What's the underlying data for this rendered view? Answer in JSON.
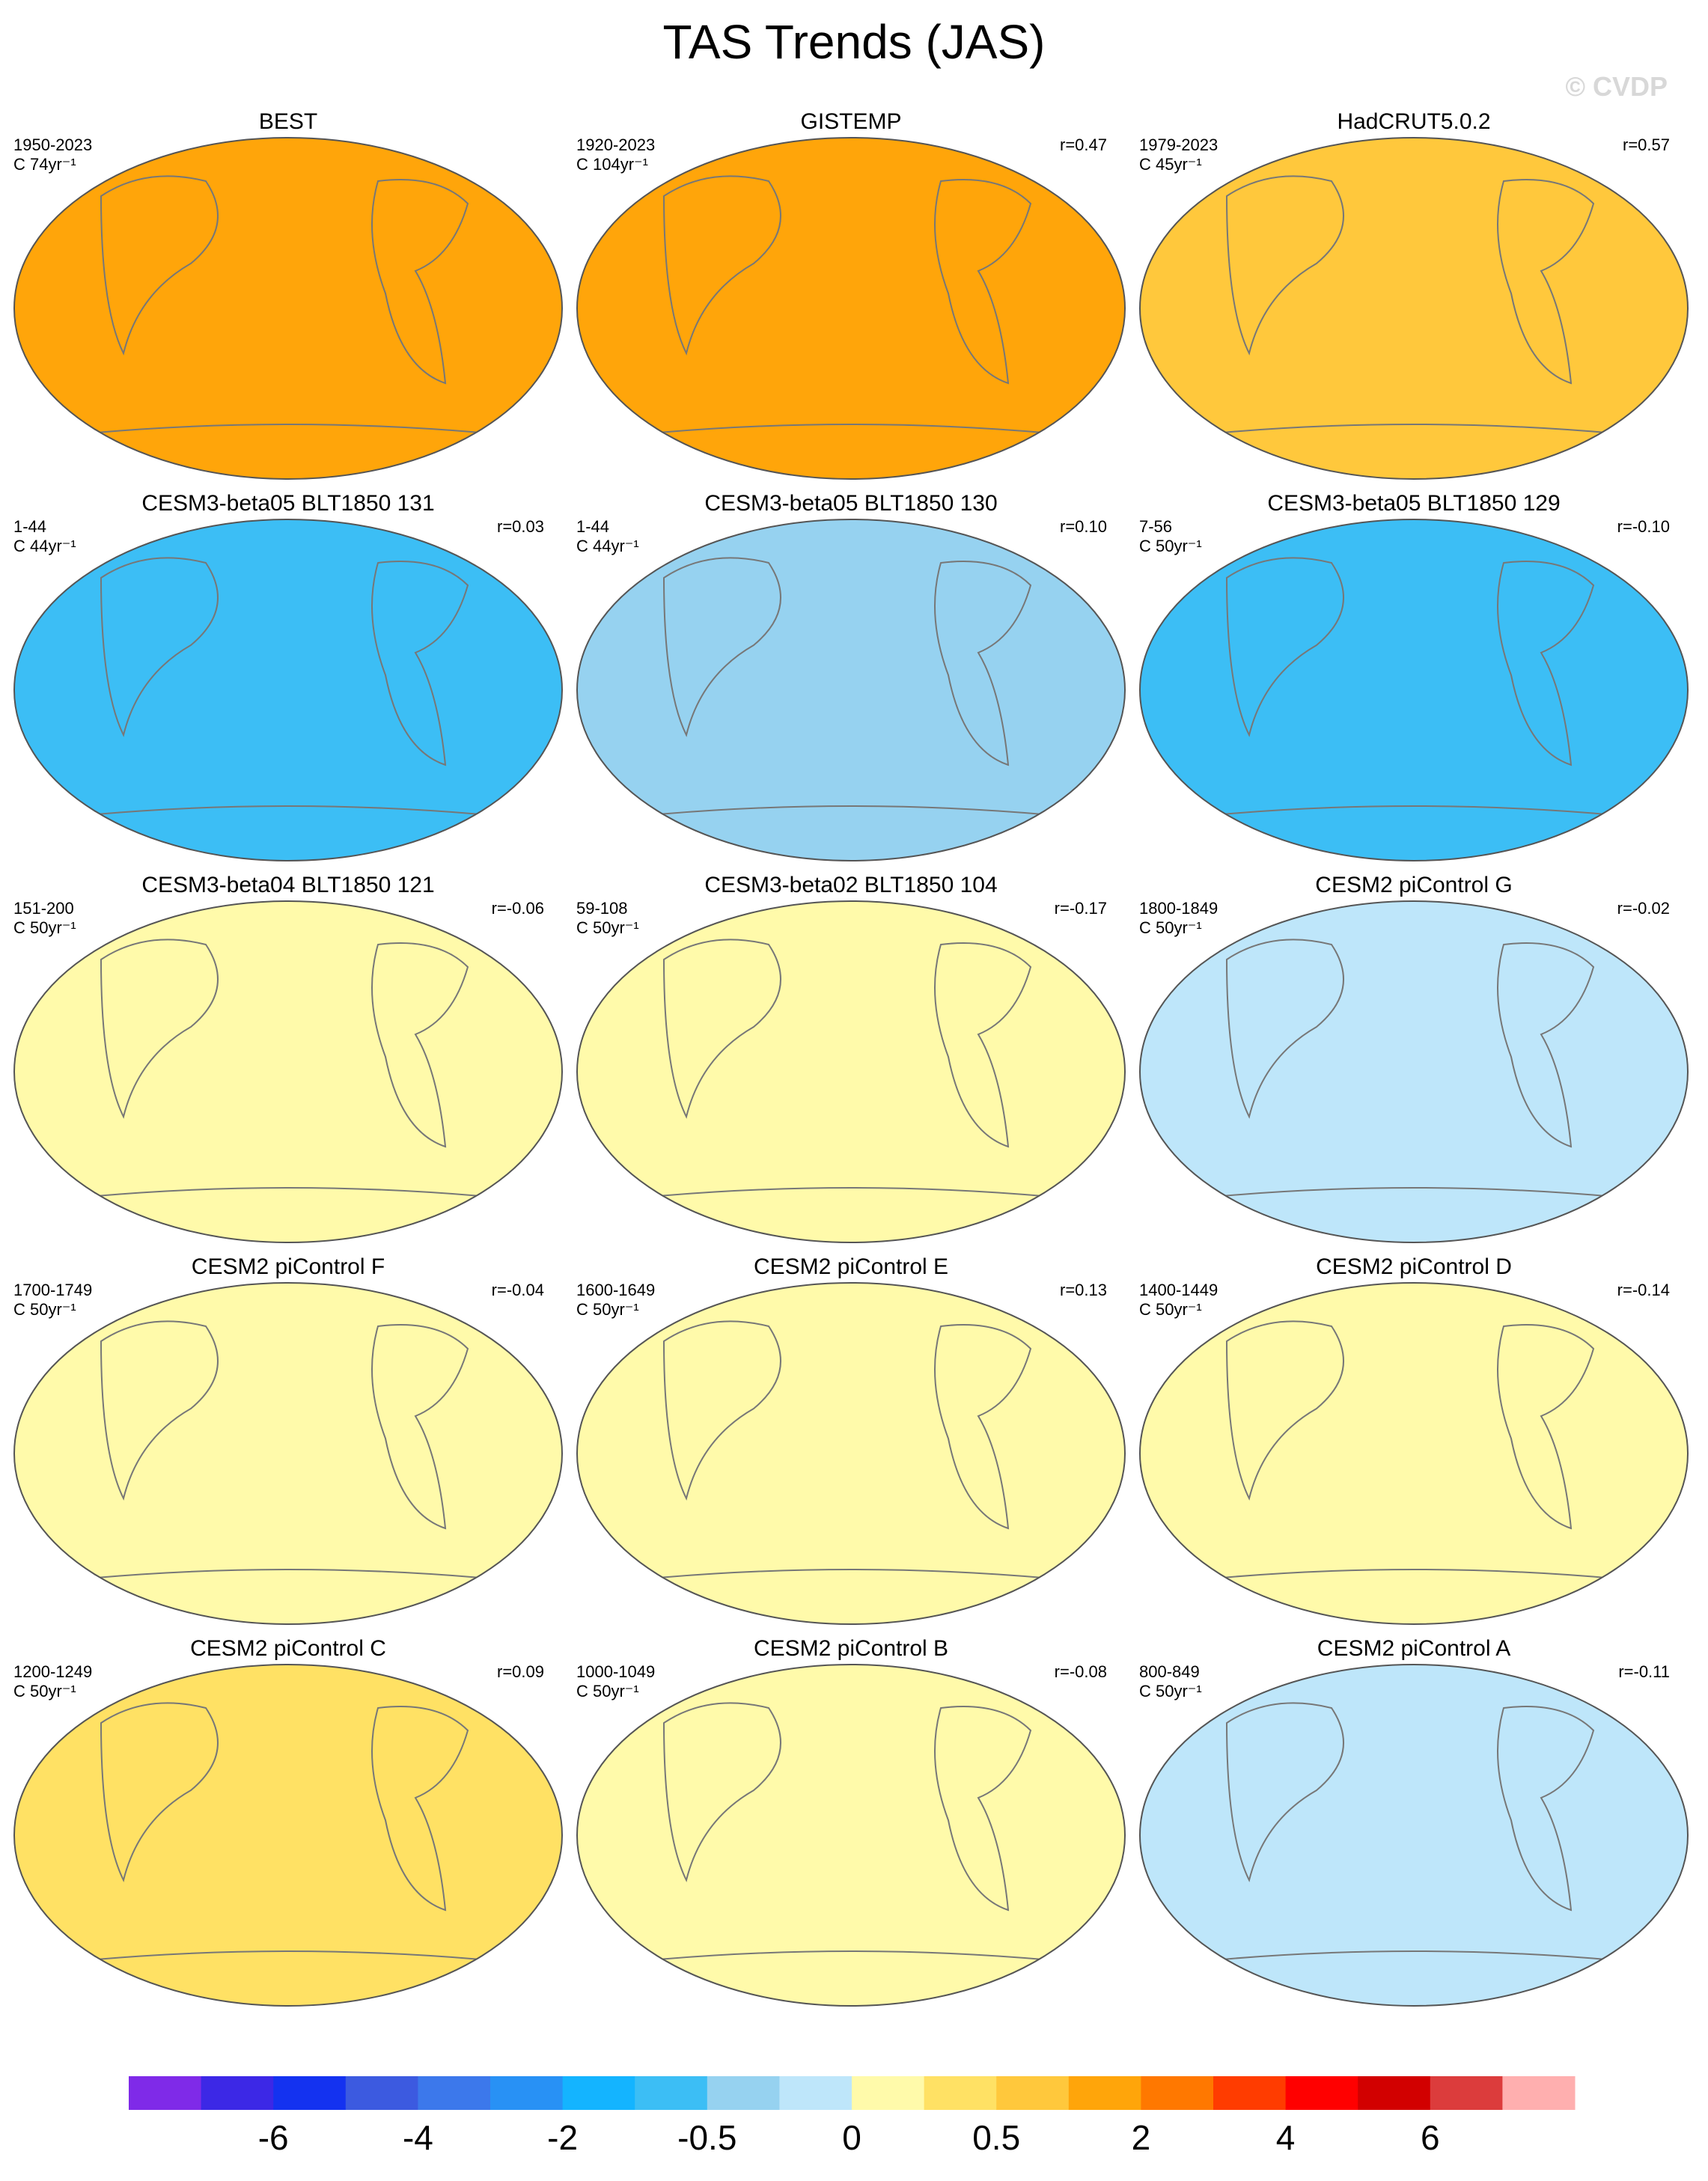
{
  "title": "TAS Trends (JAS)",
  "watermark": "© CVDP",
  "panels": [
    {
      "title": "BEST",
      "period": "1950-2023",
      "units": "C 74yr⁻¹",
      "color": "#ffa50a"
    },
    {
      "title": "GISTEMP",
      "period": "1920-2023",
      "units": "C 104yr⁻¹",
      "r": "r=0.47",
      "color": "#ffa50a"
    },
    {
      "title": "HadCRUT5.0.2",
      "period": "1979-2023",
      "units": "C 45yr⁻¹",
      "r": "r=0.57",
      "color": "#ffc83c"
    },
    {
      "title": "CESM3-beta05 BLT1850 131",
      "period": "1-44",
      "units": "C 44yr⁻¹",
      "r": "r=0.03",
      "color": "#3cbef5"
    },
    {
      "title": "CESM3-beta05 BLT1850 130",
      "period": "1-44",
      "units": "C 44yr⁻¹",
      "r": "r=0.10",
      "color": "#96d2f0"
    },
    {
      "title": "CESM3-beta05 BLT1850 129",
      "period": "7-56",
      "units": "C 50yr⁻¹",
      "r": "r=-0.10",
      "color": "#3cbef5"
    },
    {
      "title": "CESM3-beta04 BLT1850 121",
      "period": "151-200",
      "units": "C 50yr⁻¹",
      "r": "r=-0.06",
      "color": "#fffaaa"
    },
    {
      "title": "CESM3-beta02 BLT1850 104",
      "period": "59-108",
      "units": "C 50yr⁻¹",
      "r": "r=-0.17",
      "color": "#fffaaa"
    },
    {
      "title": "CESM2 piControl G",
      "period": "1800-1849",
      "units": "C 50yr⁻¹",
      "r": "r=-0.02",
      "color": "#bee6fa"
    },
    {
      "title": "CESM2 piControl F",
      "period": "1700-1749",
      "units": "C 50yr⁻¹",
      "r": "r=-0.04",
      "color": "#fffaaa"
    },
    {
      "title": "CESM2 piControl E",
      "period": "1600-1649",
      "units": "C 50yr⁻¹",
      "r": "r=0.13",
      "color": "#fffaaa"
    },
    {
      "title": "CESM2 piControl D",
      "period": "1400-1449",
      "units": "C 50yr⁻¹",
      "r": "r=-0.14",
      "color": "#fffaaa"
    },
    {
      "title": "CESM2 piControl C",
      "period": "1200-1249",
      "units": "C 50yr⁻¹",
      "r": "r=0.09",
      "color": "#ffe164"
    },
    {
      "title": "CESM2 piControl B",
      "period": "1000-1049",
      "units": "C 50yr⁻¹",
      "r": "r=-0.08",
      "color": "#fffaaa"
    },
    {
      "title": "CESM2 piControl A",
      "period": "800-849",
      "units": "C 50yr⁻¹",
      "r": "r=-0.11",
      "color": "#bee6fa"
    }
  ],
  "colorbar": {
    "colors": [
      "#7f2ae8",
      "#3c28e6",
      "#1432f0",
      "#3c5ae0",
      "#3c78eb",
      "#2891f5",
      "#14b4ff",
      "#3cbef5",
      "#96d2f0",
      "#bee6fa",
      "#fffaaa",
      "#ffe164",
      "#ffc83c",
      "#ffa50a",
      "#ff7800",
      "#ff3c00",
      "#ff0000",
      "#d20000",
      "#dc3c3c",
      "#ffafaf"
    ],
    "labels": [
      -6,
      -4,
      -2,
      -0.5,
      0,
      0.5,
      2,
      4,
      6
    ]
  }
}
